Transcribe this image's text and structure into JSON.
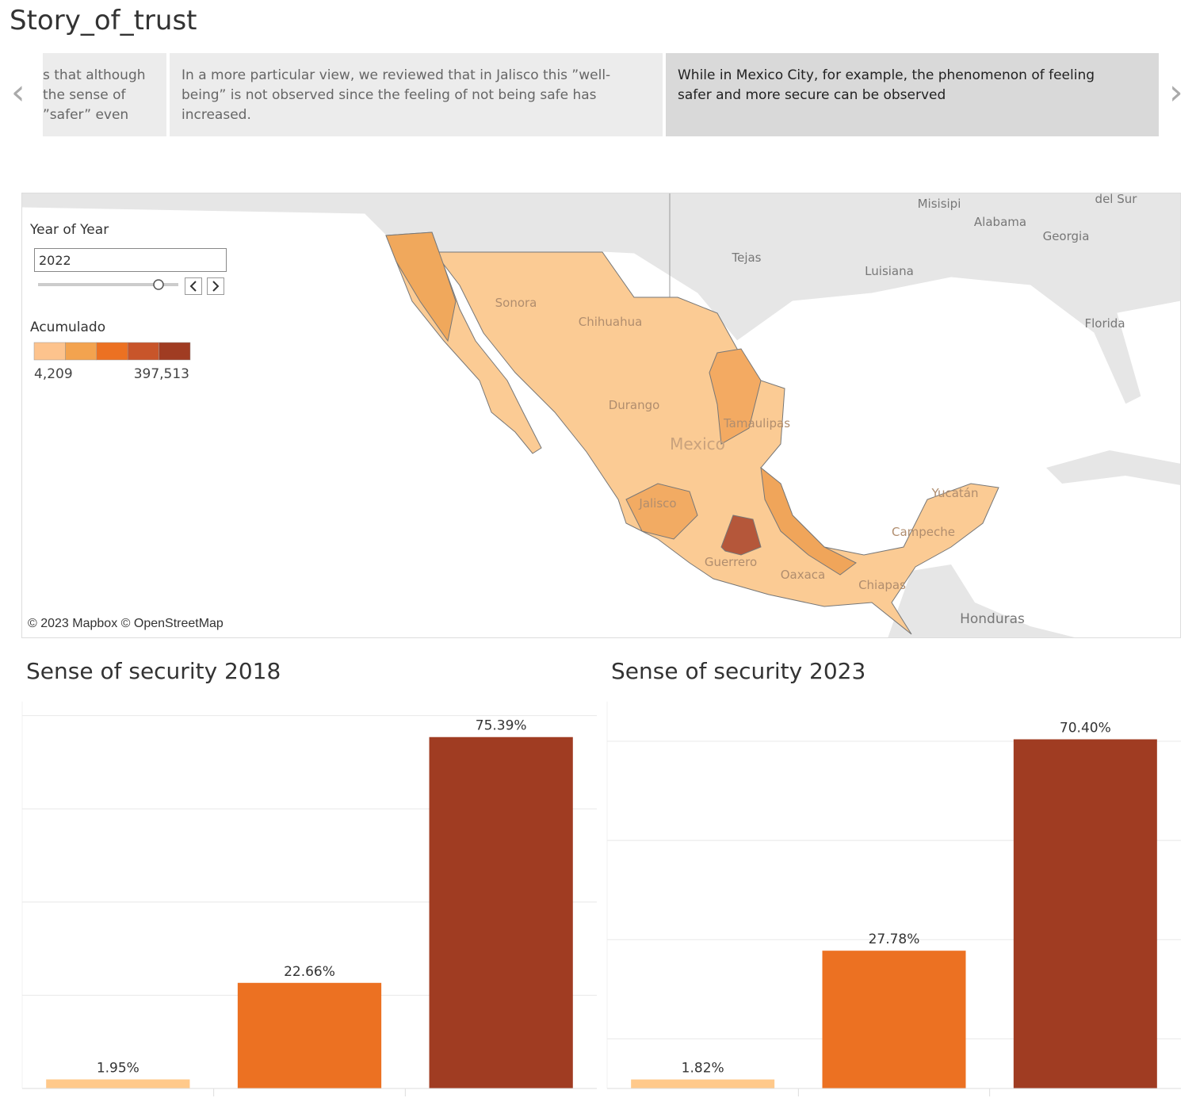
{
  "header": {
    "title": "Story_of_trust"
  },
  "story_points": [
    {
      "lines": [
        "s that although",
        "the sense of",
        "”safer” even"
      ]
    },
    {
      "text": "In a more particular view, we reviewed that in Jalisco this ”well-being” is not observed since the feeling of not being safe has increased."
    },
    {
      "text": "While in Mexico City, for example, the phenomenon of feeling safer and more secure can be observed"
    }
  ],
  "map": {
    "filter_title": "Year of Year",
    "year": "2022",
    "legend_title": "Acumulado",
    "legend_colors": [
      "#fdc38d",
      "#f3a34f",
      "#ec7122",
      "#c8552a",
      "#a03c22"
    ],
    "legend_labels": [
      "4,209",
      "397,513"
    ],
    "places": [
      "Misisipi",
      "del Sur",
      "Alabama",
      "Georgia",
      "Tejas",
      "Luisiana",
      "Florida",
      "Sonora",
      "Chihuahua",
      "Durango",
      "Tamaulipas",
      "Mexico",
      "Jalisco",
      "Guerrero",
      "Oaxaca",
      "Chiapas",
      "Campeche",
      "Yucatán",
      "Honduras"
    ],
    "attribution": "© 2023 Mapbox © OpenStreetMap"
  },
  "chart_data": [
    {
      "type": "bar",
      "title": "Sense of security 2018",
      "categories": [
        null,
        null,
        null
      ],
      "values": [
        1.95,
        22.66,
        75.39
      ],
      "value_labels": [
        "1.95%",
        "22.66%",
        "75.39%"
      ],
      "colors": [
        "#ffc98b",
        "#ec7122",
        "#a03c22"
      ],
      "ylim": [
        0,
        83
      ],
      "yticks": [
        0,
        20,
        40,
        60,
        80
      ],
      "grid": true
    },
    {
      "type": "bar",
      "title": "Sense of security 2023",
      "categories": [
        null,
        null,
        null
      ],
      "values": [
        1.82,
        27.78,
        70.4
      ],
      "value_labels": [
        "1.82%",
        "27.78%",
        "70.40%"
      ],
      "colors": [
        "#ffc98b",
        "#ec7122",
        "#a03c22"
      ],
      "ylim": [
        0,
        78
      ],
      "yticks": [
        10,
        30,
        50,
        70
      ],
      "grid": true
    }
  ]
}
